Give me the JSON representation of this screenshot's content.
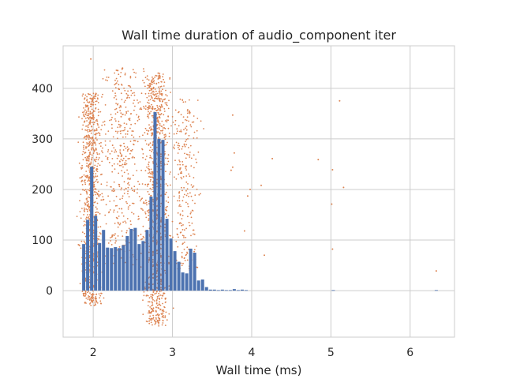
{
  "chart_data": {
    "type": "bar",
    "title": "Wall time duration of audio_component iter",
    "xlabel": "Wall time (ms)",
    "ylabel": "",
    "xlim": [
      1.62,
      6.56
    ],
    "ylim": [
      -92,
      484
    ],
    "x_ticks": [
      2,
      3,
      4,
      5,
      6
    ],
    "y_ticks": [
      0,
      100,
      200,
      300,
      400
    ],
    "grid": true,
    "colors": {
      "bars": "#4c72b0",
      "points": "#dd8452",
      "grid": "#cccccc",
      "spine": "#cccccc"
    },
    "histogram": {
      "bin_width": 0.05,
      "bins": [
        {
          "x": 1.86,
          "count": 92
        },
        {
          "x": 1.91,
          "count": 140
        },
        {
          "x": 1.96,
          "count": 245
        },
        {
          "x": 2.01,
          "count": 148
        },
        {
          "x": 2.06,
          "count": 94
        },
        {
          "x": 2.11,
          "count": 120
        },
        {
          "x": 2.16,
          "count": 85
        },
        {
          "x": 2.21,
          "count": 84
        },
        {
          "x": 2.26,
          "count": 86
        },
        {
          "x": 2.31,
          "count": 84
        },
        {
          "x": 2.36,
          "count": 90
        },
        {
          "x": 2.41,
          "count": 108
        },
        {
          "x": 2.46,
          "count": 122
        },
        {
          "x": 2.51,
          "count": 124
        },
        {
          "x": 2.56,
          "count": 92
        },
        {
          "x": 2.61,
          "count": 98
        },
        {
          "x": 2.66,
          "count": 120
        },
        {
          "x": 2.71,
          "count": 186
        },
        {
          "x": 2.76,
          "count": 353
        },
        {
          "x": 2.81,
          "count": 300
        },
        {
          "x": 2.86,
          "count": 298
        },
        {
          "x": 2.91,
          "count": 142
        },
        {
          "x": 2.96,
          "count": 103
        },
        {
          "x": 3.01,
          "count": 78
        },
        {
          "x": 3.06,
          "count": 57
        },
        {
          "x": 3.11,
          "count": 36
        },
        {
          "x": 3.16,
          "count": 34
        },
        {
          "x": 3.21,
          "count": 83
        },
        {
          "x": 3.26,
          "count": 75
        },
        {
          "x": 3.31,
          "count": 20
        },
        {
          "x": 3.36,
          "count": 22
        },
        {
          "x": 3.41,
          "count": 7
        },
        {
          "x": 3.46,
          "count": 2
        },
        {
          "x": 3.51,
          "count": 2
        },
        {
          "x": 3.56,
          "count": 1
        },
        {
          "x": 3.61,
          "count": 2
        },
        {
          "x": 3.66,
          "count": 1
        },
        {
          "x": 3.71,
          "count": 1
        },
        {
          "x": 3.76,
          "count": 3
        },
        {
          "x": 3.81,
          "count": 1
        },
        {
          "x": 3.86,
          "count": 2
        },
        {
          "x": 3.91,
          "count": 1
        },
        {
          "x": 5.01,
          "count": 1
        },
        {
          "x": 6.31,
          "count": 1
        }
      ]
    },
    "scatter": {
      "clusters": [
        {
          "x_center": 1.97,
          "x_spread": 0.1,
          "y_min": -30,
          "y_max": 390,
          "count": 900
        },
        {
          "x_center": 2.8,
          "x_spread": 0.12,
          "y_min": -70,
          "y_max": 430,
          "count": 1100
        },
        {
          "x_center": 2.4,
          "x_spread": 0.25,
          "y_min": 50,
          "y_max": 440,
          "count": 450
        },
        {
          "x_center": 3.15,
          "x_spread": 0.15,
          "y_min": 40,
          "y_max": 380,
          "count": 250
        }
      ],
      "outliers": [
        {
          "x": 1.97,
          "y": 458
        },
        {
          "x": 2.31,
          "y": 435
        },
        {
          "x": 2.37,
          "y": 440
        },
        {
          "x": 2.82,
          "y": 430
        },
        {
          "x": 3.76,
          "y": 347
        },
        {
          "x": 3.78,
          "y": 272
        },
        {
          "x": 3.74,
          "y": 238
        },
        {
          "x": 3.76,
          "y": 244
        },
        {
          "x": 3.95,
          "y": 187
        },
        {
          "x": 3.98,
          "y": 200
        },
        {
          "x": 3.91,
          "y": 118
        },
        {
          "x": 4.12,
          "y": 208
        },
        {
          "x": 4.26,
          "y": 261
        },
        {
          "x": 4.16,
          "y": 70
        },
        {
          "x": 4.84,
          "y": 259
        },
        {
          "x": 5.02,
          "y": 239
        },
        {
          "x": 5.01,
          "y": 171
        },
        {
          "x": 5.02,
          "y": 82
        },
        {
          "x": 5.11,
          "y": 375
        },
        {
          "x": 5.16,
          "y": 204
        },
        {
          "x": 6.33,
          "y": 39
        }
      ]
    }
  }
}
